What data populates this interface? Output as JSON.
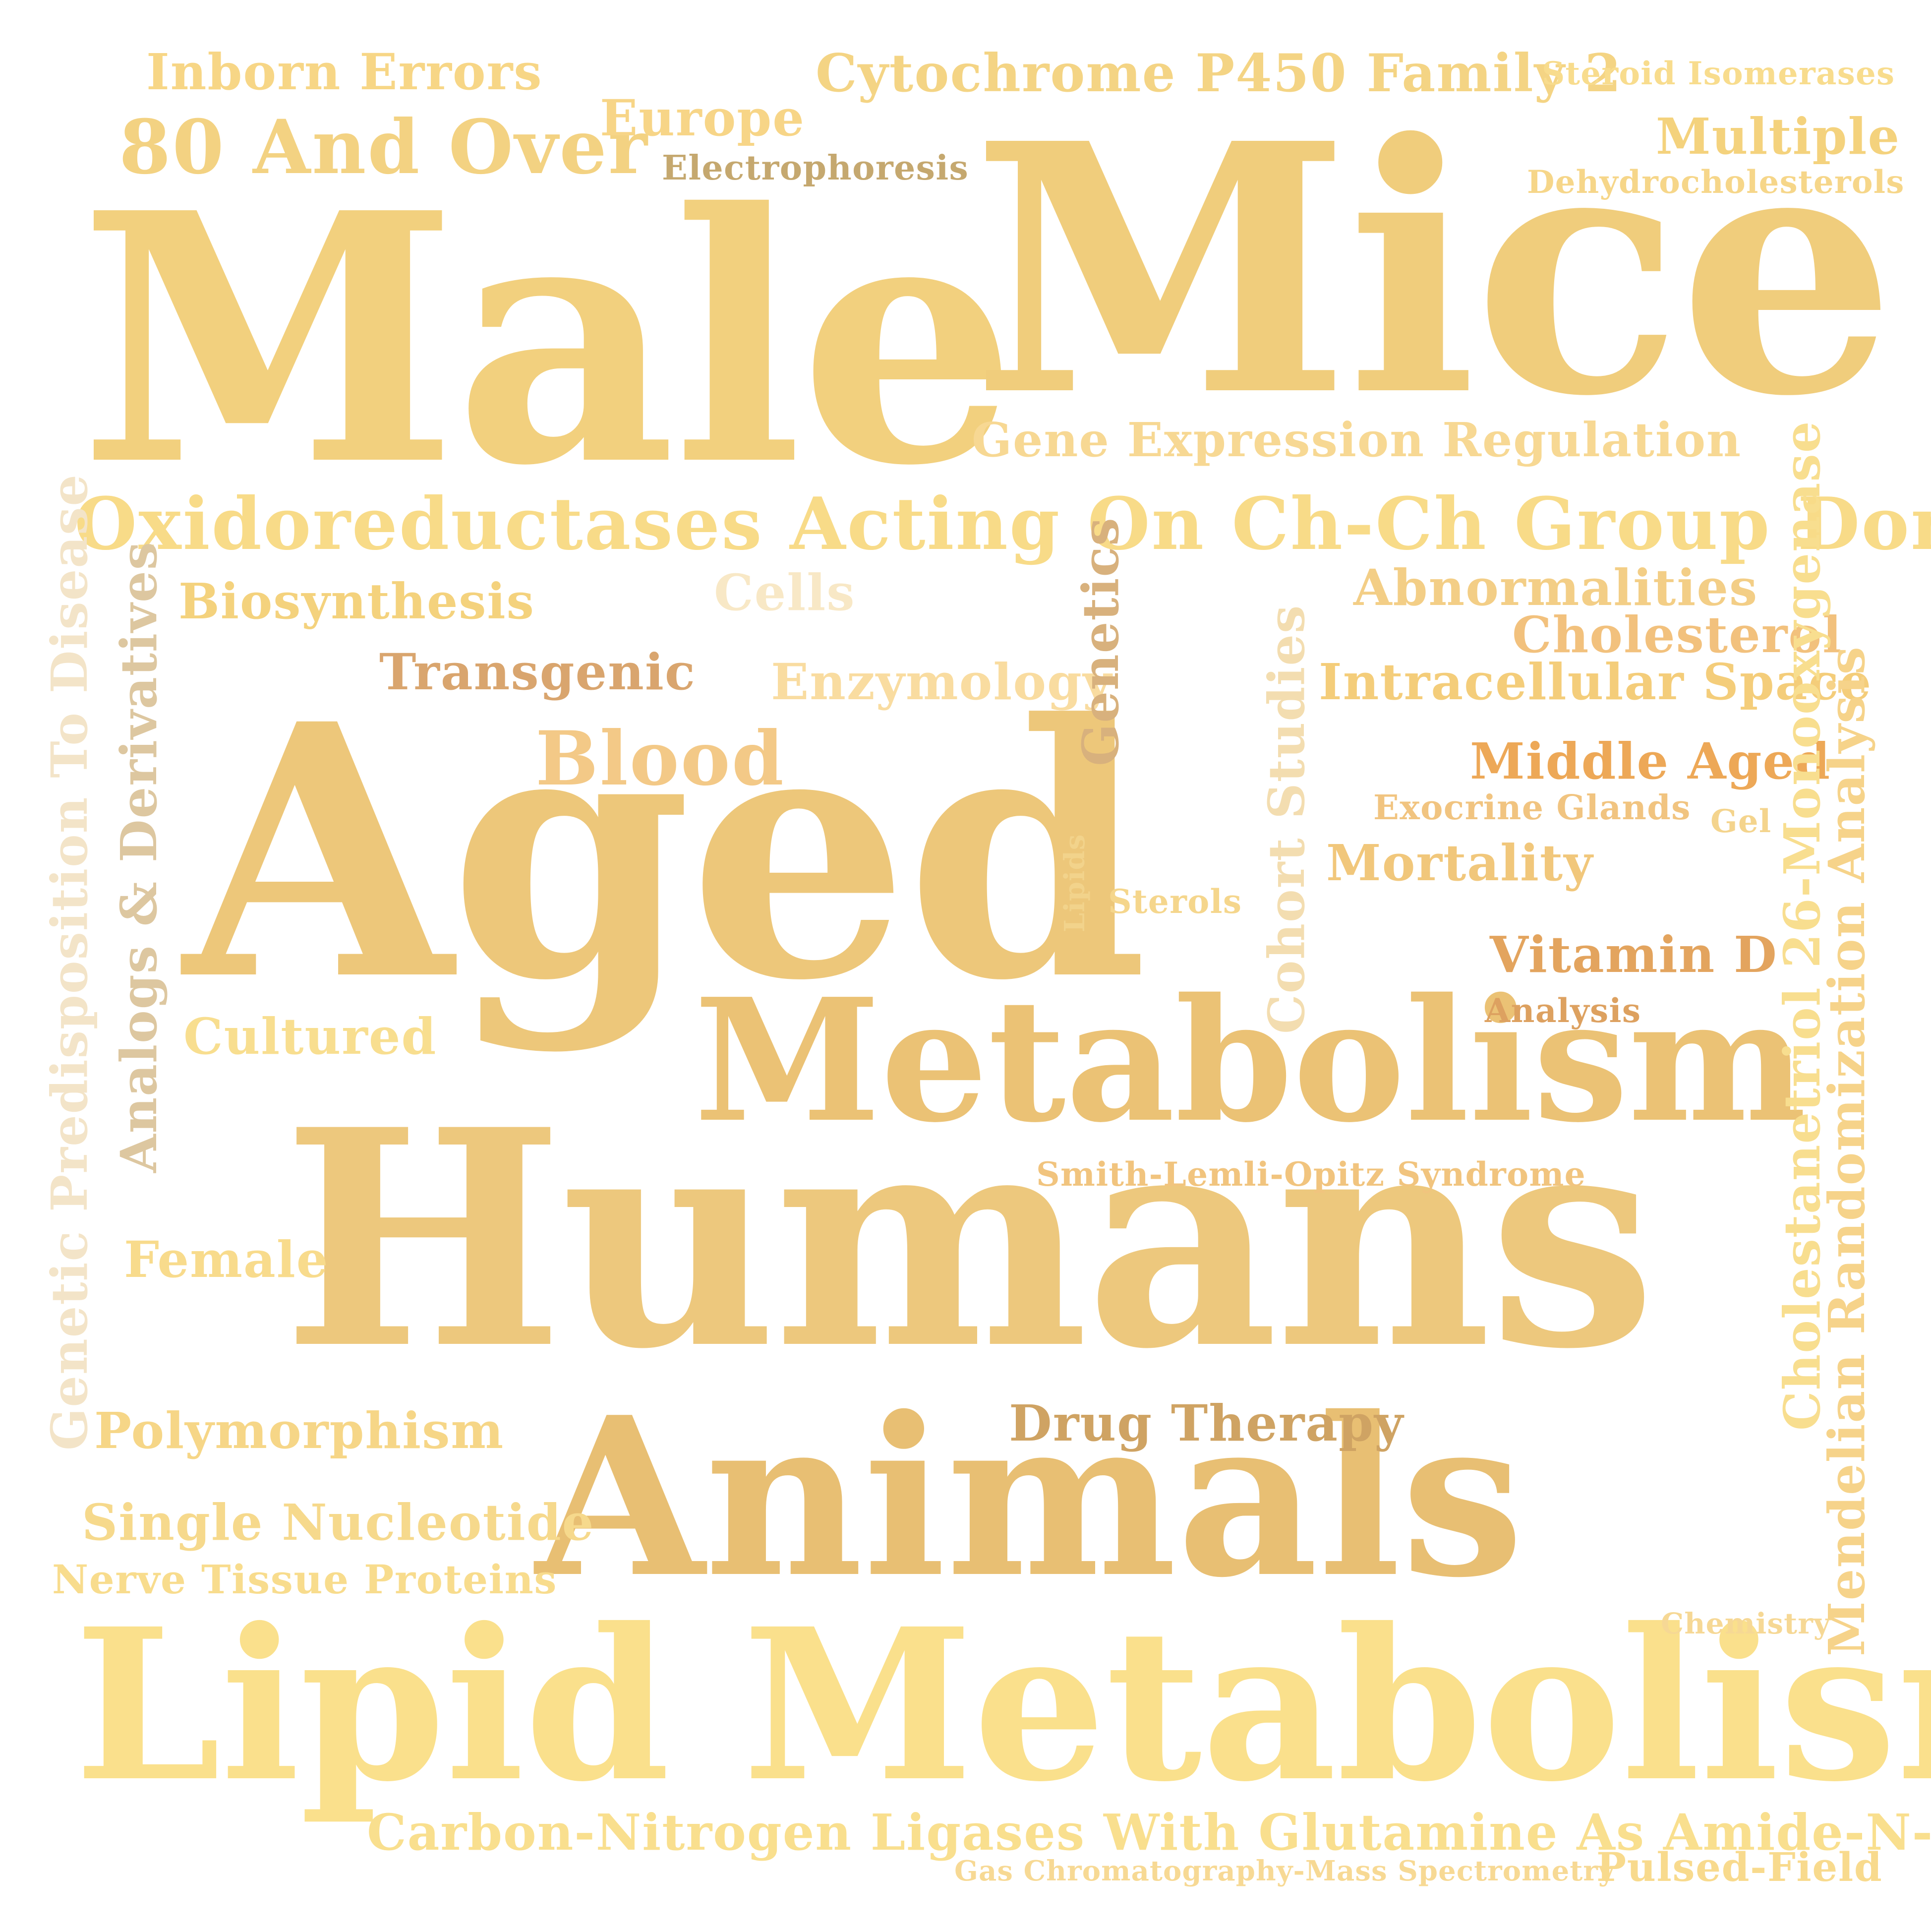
{
  "words": {
    "male": {
      "text": "Male",
      "color": "#F2D07E"
    },
    "mice": {
      "text": "Mice",
      "color": "#F0CD7C"
    },
    "aged": {
      "text": "Aged",
      "color": "#EDC77A"
    },
    "humans": {
      "text": "Humans",
      "color": "#EDC87D"
    },
    "metabolism": {
      "text": "Metabolism",
      "color": "#EBC275"
    },
    "animals": {
      "text": "Animals",
      "color": "#E8BF73"
    },
    "lipid_metabolism": {
      "text": "Lipid Metabolism",
      "color": "#FAE08C"
    },
    "oxidoreductases": {
      "text": "Oxidoreductases Acting On Ch-Ch Group Donors",
      "color": "#F8DB88"
    },
    "inborn_errors": {
      "text": "Inborn Errors",
      "color": "#F7D686"
    },
    "age_80": {
      "text": "80 And Over",
      "color": "#F3D282"
    },
    "cytochrome": {
      "text": "Cytochrome P450 Family 2",
      "color": "#F4D484"
    },
    "steroid_isomerases": {
      "text": "Steroid Isomerases",
      "color": "#F8DC8D"
    },
    "europe": {
      "text": "Europe",
      "color": "#F7D587"
    },
    "electrophoresis": {
      "text": "Electrophoresis",
      "color": "#C5A86F"
    },
    "multiple": {
      "text": "Multiple",
      "color": "#F4D27D"
    },
    "dehydrocholesterols": {
      "text": "Dehydrocholesterols",
      "color": "#F6D689"
    },
    "gene_expression": {
      "text": "Gene Expression Regulation",
      "color": "#F7D893"
    },
    "biosynthesis": {
      "text": "Biosynthesis",
      "color": "#F4D27D"
    },
    "cells": {
      "text": "Cells",
      "color": "#F8E8C6"
    },
    "abnormalities": {
      "text": "Abnormalities",
      "color": "#F3CE86"
    },
    "cholesterol": {
      "text": "Cholesterol",
      "color": "#F2C17D"
    },
    "transgenic": {
      "text": "Transgenic",
      "color": "#D9A56E"
    },
    "enzymology": {
      "text": "Enzymology",
      "color": "#F9DCA0"
    },
    "intracellular": {
      "text": "Intracellular Space",
      "color": "#F4CD7A"
    },
    "blood": {
      "text": "Blood",
      "color": "#F3C987"
    },
    "middle_aged": {
      "text": "Middle Aged",
      "color": "#EDA857"
    },
    "exocrine": {
      "text": "Exocrine Glands",
      "color": "#F1C480"
    },
    "gel": {
      "text": "Gel",
      "color": "#F4D48D"
    },
    "mortality": {
      "text": "Mortality",
      "color": "#F1C77B"
    },
    "sterols": {
      "text": "Sterols",
      "color": "#F5D68C"
    },
    "vitamin_d": {
      "text": "Vitamin D",
      "color": "#E3A45E"
    },
    "analysis": {
      "text": "Analysis",
      "color": "#DDA160"
    },
    "cultured": {
      "text": "Cultured",
      "color": "#F8DE8F"
    },
    "smith_lemli": {
      "text": "Smith-Lemli-Opitz Syndrome",
      "color": "#F1C47E"
    },
    "female": {
      "text": "Female",
      "color": "#F8DB8C"
    },
    "drug_therapy": {
      "text": "Drug Therapy",
      "color": "#CFA363"
    },
    "polymorphism": {
      "text": "Polymorphism",
      "color": "#F6D687"
    },
    "single_nucleotide": {
      "text": "Single Nucleotide",
      "color": "#F6D98C"
    },
    "nerve_tissue": {
      "text": "Nerve Tissue Proteins",
      "color": "#F8DC8D"
    },
    "chemistry": {
      "text": "Chemistry",
      "color": "#F6D895"
    },
    "carbon_nitrogen": {
      "text": "Carbon-Nitrogen Ligases With Glutamine As Amide-N-Donor",
      "color": "#F9DF8E"
    },
    "gas_chromatography": {
      "text": "Gas Chromatography-Mass Spectrometry",
      "color": "#F7D994"
    },
    "pulsed_field": {
      "text": "Pulsed-Field",
      "color": "#F8DA8D"
    },
    "genetic_predisposition": {
      "text": "Genetic Predisposition To Disease",
      "color": "#F3E4C8"
    },
    "analogs": {
      "text": "Analogs & Derivatives",
      "color": "#DDC7A0"
    },
    "genetics": {
      "text": "Genetics",
      "color": "#D8B17D"
    },
    "lipids": {
      "text": "Lipids",
      "color": "#F2D38B"
    },
    "cohort": {
      "text": "Cohort Studies",
      "color": "#F3DDB0"
    },
    "cholestanetriol": {
      "text": "Cholestanetriol 26-Monooxygenase",
      "color": "#F8DE8F"
    },
    "mendelian": {
      "text": "Mendelian Randomization Analysis",
      "color": "#F6D38A"
    }
  }
}
